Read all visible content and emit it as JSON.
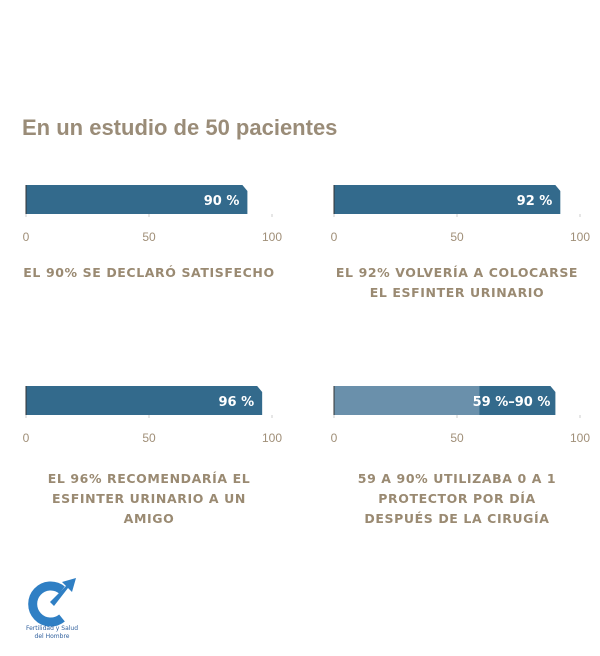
{
  "title": "En un estudio de 50 pacientes",
  "chart_data": [
    {
      "type": "bar",
      "values": [
        90
      ],
      "value_labels": [
        "90 %"
      ],
      "color": "#336a8c",
      "xlim": [
        0,
        100
      ],
      "xticks": [
        0,
        50,
        100
      ],
      "caption": [
        "EL 90% SE DECLARÓ SATISFECHO"
      ]
    },
    {
      "type": "bar",
      "values": [
        92
      ],
      "value_labels": [
        "92 %"
      ],
      "color": "#336a8c",
      "xlim": [
        0,
        100
      ],
      "xticks": [
        0,
        50,
        100
      ],
      "caption": [
        "EL 92% VOLVERÍA A COLOCARSE",
        "EL ESFINTER URINARIO"
      ]
    },
    {
      "type": "bar",
      "values": [
        96
      ],
      "value_labels": [
        "96 %"
      ],
      "color": "#336a8c",
      "xlim": [
        0,
        100
      ],
      "xticks": [
        0,
        50,
        100
      ],
      "caption": [
        "EL 96% RECOMENDARÍA EL",
        "ESFINTER URINARIO A UN",
        "AMIGO"
      ]
    },
    {
      "type": "range",
      "low": 59,
      "high": 90,
      "value_label": "59 %–90 %",
      "color": "#336a8c",
      "low_color": "#6a90ab",
      "xlim": [
        0,
        100
      ],
      "xticks": [
        0,
        50,
        100
      ],
      "caption": [
        "59 A 90% UTILIZABA 0 A 1",
        "PROTECTOR POR DÍA",
        "DESPUÉS DE LA CIRUGÍA"
      ]
    }
  ],
  "logo": {
    "line1": "Fertilidad y Salud",
    "line2": "del Hombre"
  }
}
